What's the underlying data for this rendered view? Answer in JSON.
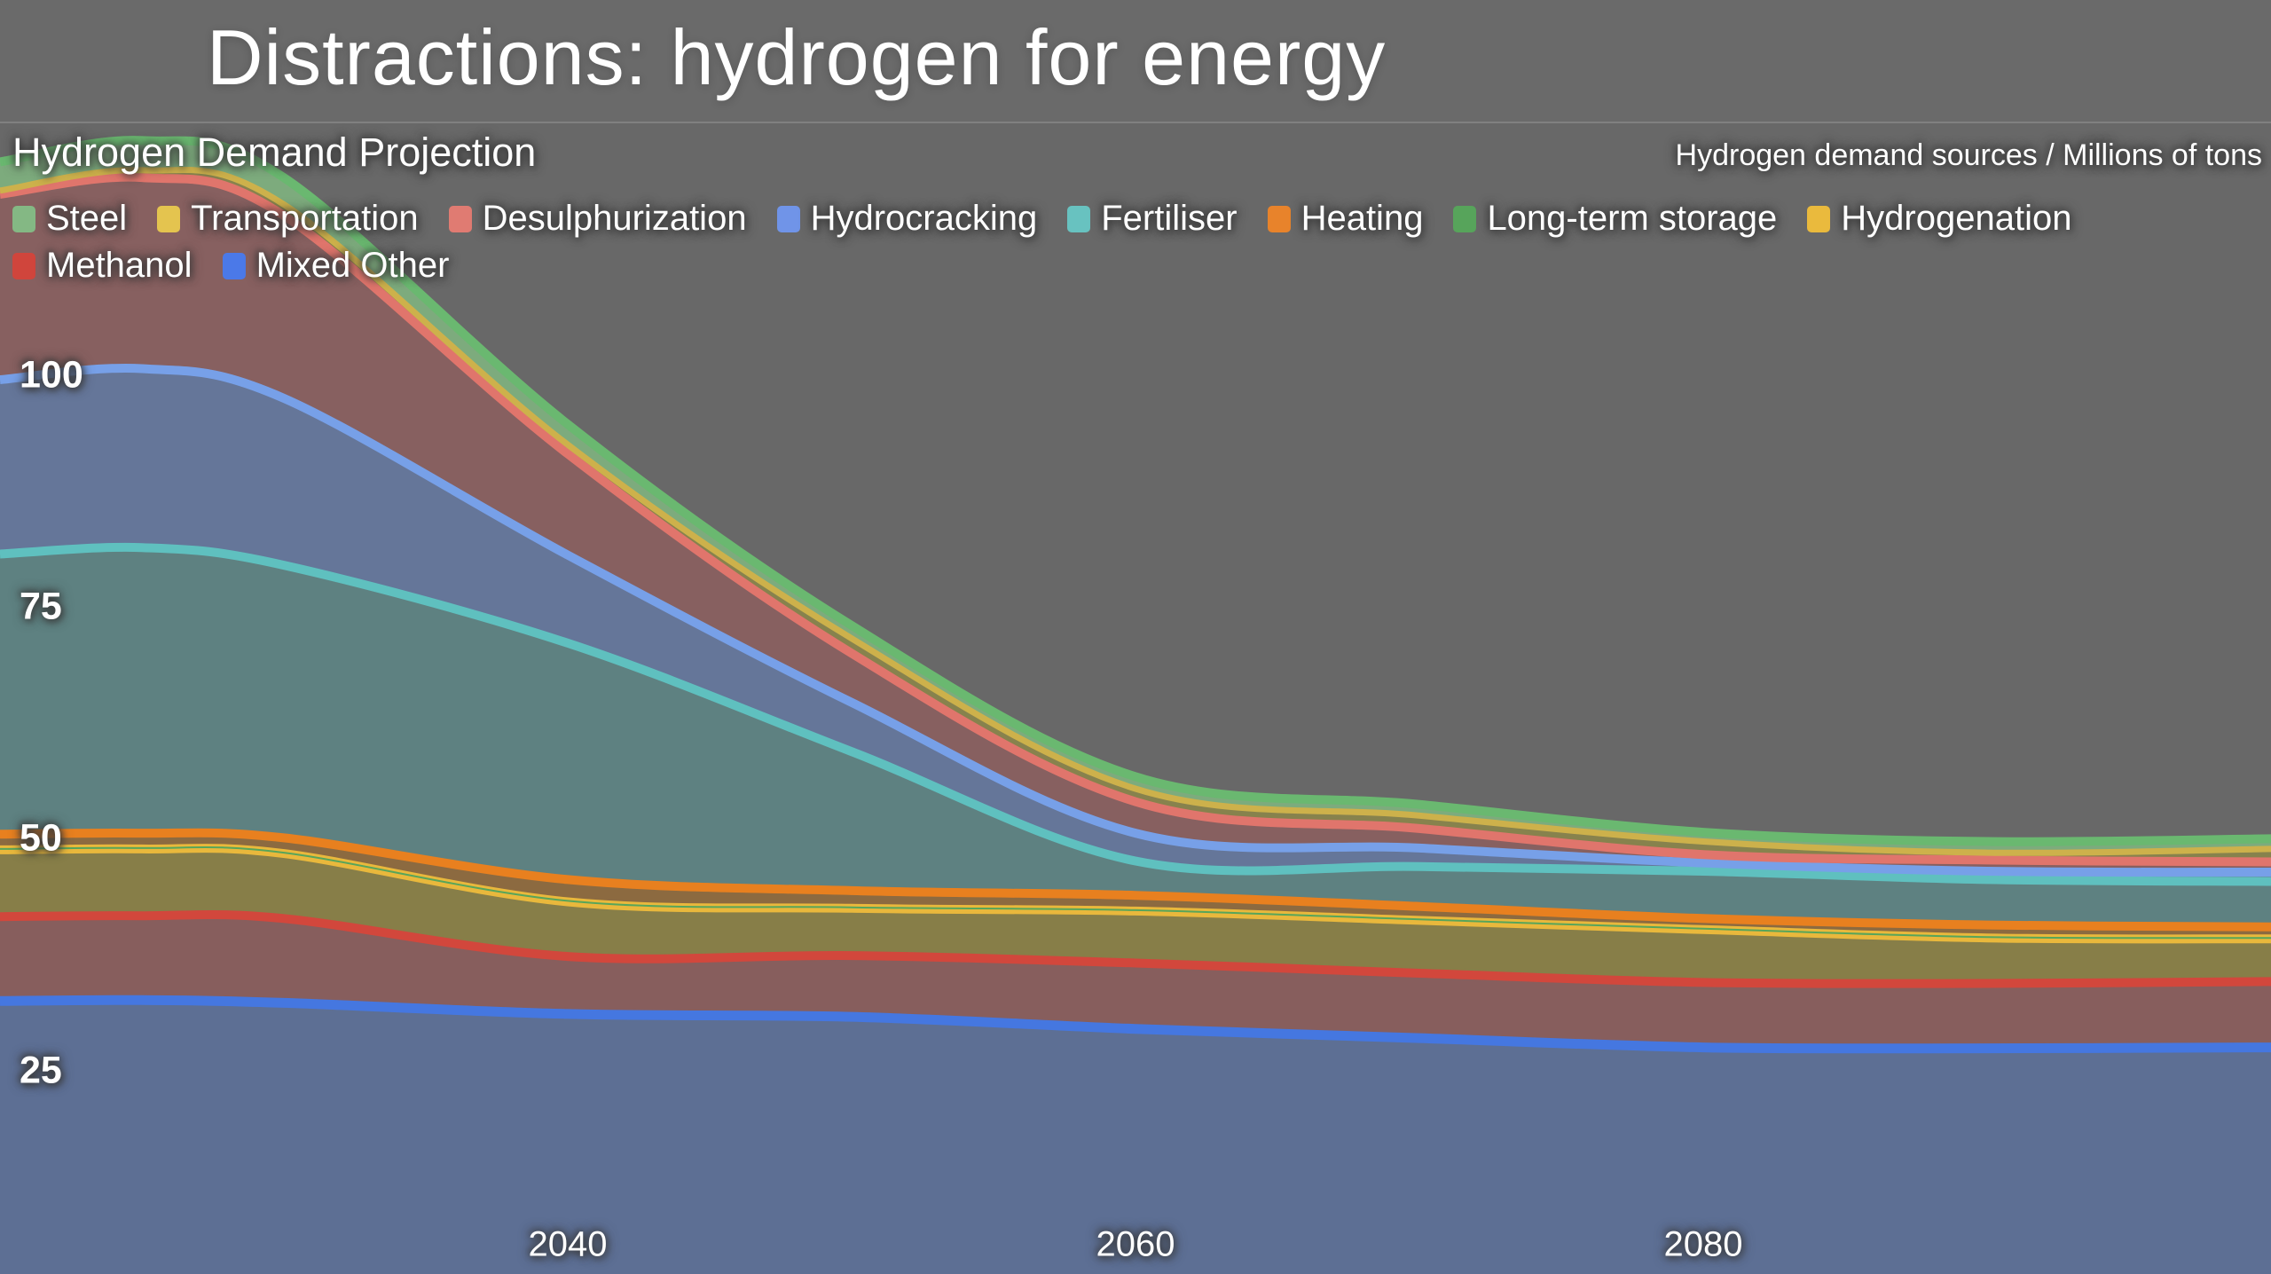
{
  "header": {
    "title": "Distractions: hydrogen for energy"
  },
  "chart": {
    "title": "Hydrogen Demand Projection",
    "unit_label": "Hydrogen demand sources / Millions of tons",
    "y_ticks": [
      100,
      75,
      50,
      25
    ],
    "x_ticks": [
      2040,
      2060,
      2080
    ]
  },
  "chart_data": {
    "type": "area",
    "stacked": true,
    "title": "Hydrogen Demand Projection",
    "ylabel": "Hydrogen demand sources / Millions of tons",
    "x": [
      2020,
      2025,
      2030,
      2040,
      2050,
      2060,
      2070,
      2080,
      2090,
      2100
    ],
    "x_range": [
      2020,
      2100
    ],
    "y_range": [
      0,
      126
    ],
    "grid": false,
    "legend_position": "top-left-overlay",
    "legend_rows": [
      8,
      2
    ],
    "legend": [
      {
        "label": "Steel",
        "color": "#84b884"
      },
      {
        "label": "Transportation",
        "color": "#e4c44f"
      },
      {
        "label": "Desulphurization",
        "color": "#e07b72"
      },
      {
        "label": "Hydrocracking",
        "color": "#7094e8"
      },
      {
        "label": "Fertiliser",
        "color": "#68c2c0"
      },
      {
        "label": "Heating",
        "color": "#e8832b"
      },
      {
        "label": "Long-term storage",
        "color": "#57a45b"
      },
      {
        "label": "Hydrogenation",
        "color": "#eaba3d"
      },
      {
        "label": "Methanol",
        "color": "#d0453c"
      },
      {
        "label": "Mixed Other",
        "color": "#4b79e8"
      }
    ],
    "series": [
      {
        "name": "Mixed Other",
        "line_color": "#4577e0",
        "fill_color": "#5d6f94",
        "line_width": 11,
        "values": [
          32.5,
          32.6,
          32.3,
          31.1,
          30.8,
          29.5,
          28.5,
          27.5,
          27.4,
          27.5
        ]
      },
      {
        "name": "Methanol",
        "line_color": "#d2473c",
        "fill_color": "#875e5d",
        "line_width": 10,
        "values": [
          9.1,
          9.1,
          9.1,
          6.2,
          6.6,
          7.1,
          7.0,
          7.0,
          7.0,
          7.1
        ]
      },
      {
        "name": "Hydrogenation",
        "line_color": "#e9b83c",
        "fill_color": "#877e48",
        "line_width": 10,
        "values": [
          7.2,
          7.2,
          7.0,
          5.9,
          5.1,
          5.6,
          5.7,
          5.7,
          4.9,
          4.6
        ]
      },
      {
        "name": "Long-term storage",
        "line_color": "#57a55b",
        "fill_color": "#6f8a57",
        "line_width": 2,
        "values": [
          0.1,
          0.1,
          0.1,
          0.1,
          0.1,
          0.1,
          0.1,
          0.1,
          0.1,
          0.1
        ]
      },
      {
        "name": "Heating",
        "line_color": "#e8801f",
        "fill_color": "#8c6a40",
        "line_width": 10,
        "values": [
          1.6,
          1.6,
          1.6,
          2.3,
          1.8,
          1.6,
          1.4,
          1.1,
          1.3,
          1.2
        ]
      },
      {
        "name": "Fertiliser",
        "line_color": "#5fc0bf",
        "fill_color": "#5e8181",
        "line_width": 10,
        "values": [
          30.2,
          30.8,
          29.4,
          25.5,
          15.0,
          3.7,
          4.3,
          5.1,
          4.9,
          4.9
        ]
      },
      {
        "name": "Hydrocracking",
        "line_color": "#77a0e8",
        "fill_color": "#657699",
        "line_width": 10,
        "values": [
          18.8,
          19.3,
          18.0,
          9.5,
          5.3,
          3.0,
          2.0,
          0.9,
          0.9,
          1.0
        ]
      },
      {
        "name": "Desulphurization",
        "line_color": "#e0756c",
        "fill_color": "#876060",
        "line_width": 10,
        "values": [
          20.0,
          20.6,
          19.7,
          10.9,
          5.3,
          3.4,
          2.1,
          0.9,
          1.2,
          1.1
        ]
      },
      {
        "name": "Transportation",
        "line_color": "#cdb14b",
        "fill_color": "#87824d",
        "line_width": 7,
        "values": [
          0.4,
          0.8,
          1.2,
          1.0,
          1.6,
          1.4,
          1.4,
          1.4,
          0.8,
          1.4
        ]
      },
      {
        "name": "Steel",
        "line_color": "#6ab870",
        "fill_color": "#7dab7d",
        "line_width": 10,
        "values": [
          3.1,
          3.2,
          2.9,
          2.2,
          1.4,
          1.3,
          1.2,
          1.0,
          1.2,
          1.1
        ]
      }
    ]
  }
}
